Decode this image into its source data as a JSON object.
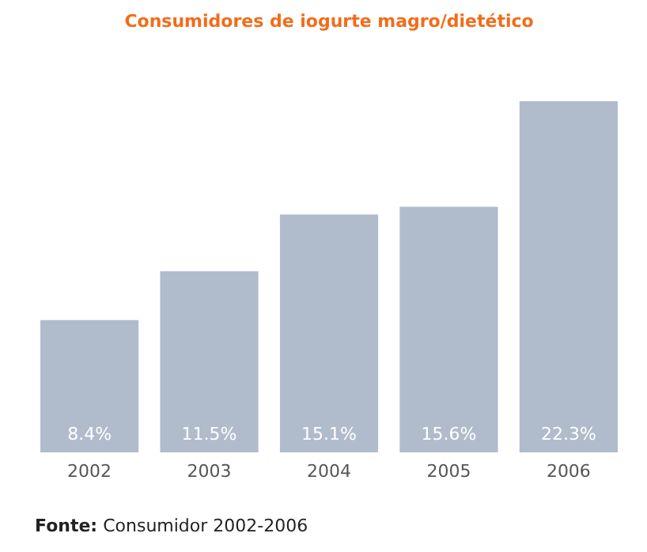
{
  "chart_data": {
    "type": "bar",
    "title": "Consumidores de iogurte magro/dietético",
    "categories": [
      "2002",
      "2003",
      "2004",
      "2005",
      "2006"
    ],
    "values": [
      8.4,
      11.5,
      15.1,
      15.6,
      22.3
    ],
    "value_labels": [
      "8.4%",
      "11.5%",
      "15.1%",
      "15.6%",
      "22.3%"
    ],
    "color": "#b0bccc",
    "annotations": [
      "Fonte: Consumidor 2002-2006"
    ]
  }
}
